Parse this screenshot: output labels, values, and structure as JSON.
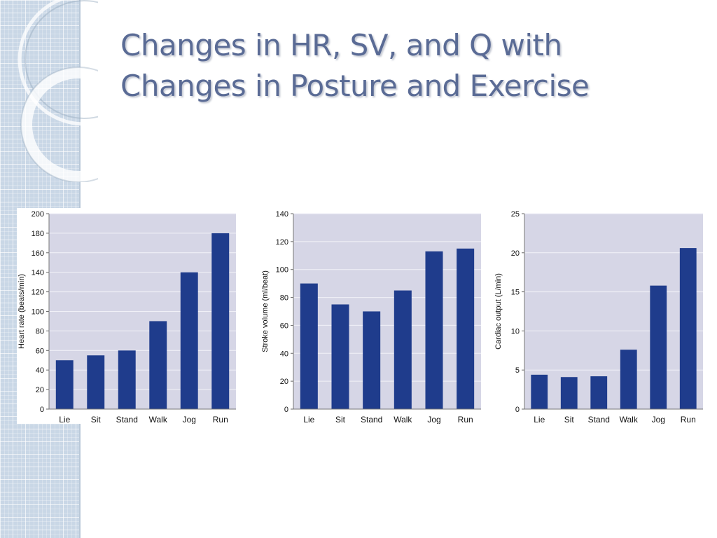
{
  "slide": {
    "title_line1": "Changes in HR, SV, and Q with",
    "title_line2": "Changes in Posture and Exercise"
  },
  "chart_data": [
    {
      "type": "bar",
      "categories": [
        "Lie",
        "Sit",
        "Stand",
        "Walk",
        "Jog",
        "Run"
      ],
      "values": [
        50,
        55,
        60,
        90,
        140,
        180
      ],
      "title": "",
      "xlabel": "",
      "ylabel": "Heart rate (beats/min)",
      "ylim": [
        0,
        200
      ],
      "yticks": [
        0,
        20,
        40,
        60,
        80,
        100,
        120,
        140,
        160,
        180,
        200
      ],
      "grid": true,
      "bar_color": "#1f3c8c",
      "plot_bg": "#d6d6e6"
    },
    {
      "type": "bar",
      "categories": [
        "Lie",
        "Sit",
        "Stand",
        "Walk",
        "Jog",
        "Run"
      ],
      "values": [
        90,
        75,
        70,
        85,
        113,
        115
      ],
      "title": "",
      "xlabel": "",
      "ylabel": "Stroke volume (ml/beat)",
      "ylim": [
        0,
        140
      ],
      "yticks": [
        0,
        20,
        40,
        60,
        80,
        100,
        120,
        140
      ],
      "grid": true,
      "bar_color": "#1f3c8c",
      "plot_bg": "#d6d6e6"
    },
    {
      "type": "bar",
      "categories": [
        "Lie",
        "Sit",
        "Stand",
        "Walk",
        "Jog",
        "Run"
      ],
      "values": [
        4.4,
        4.1,
        4.2,
        7.6,
        15.8,
        20.6
      ],
      "title": "",
      "xlabel": "",
      "ylabel": "Cardiac output (L/min)",
      "ylim": [
        0,
        25
      ],
      "yticks": [
        0,
        5,
        10,
        15,
        20,
        25
      ],
      "grid": true,
      "bar_color": "#1f3c8c",
      "plot_bg": "#d6d6e6"
    }
  ]
}
